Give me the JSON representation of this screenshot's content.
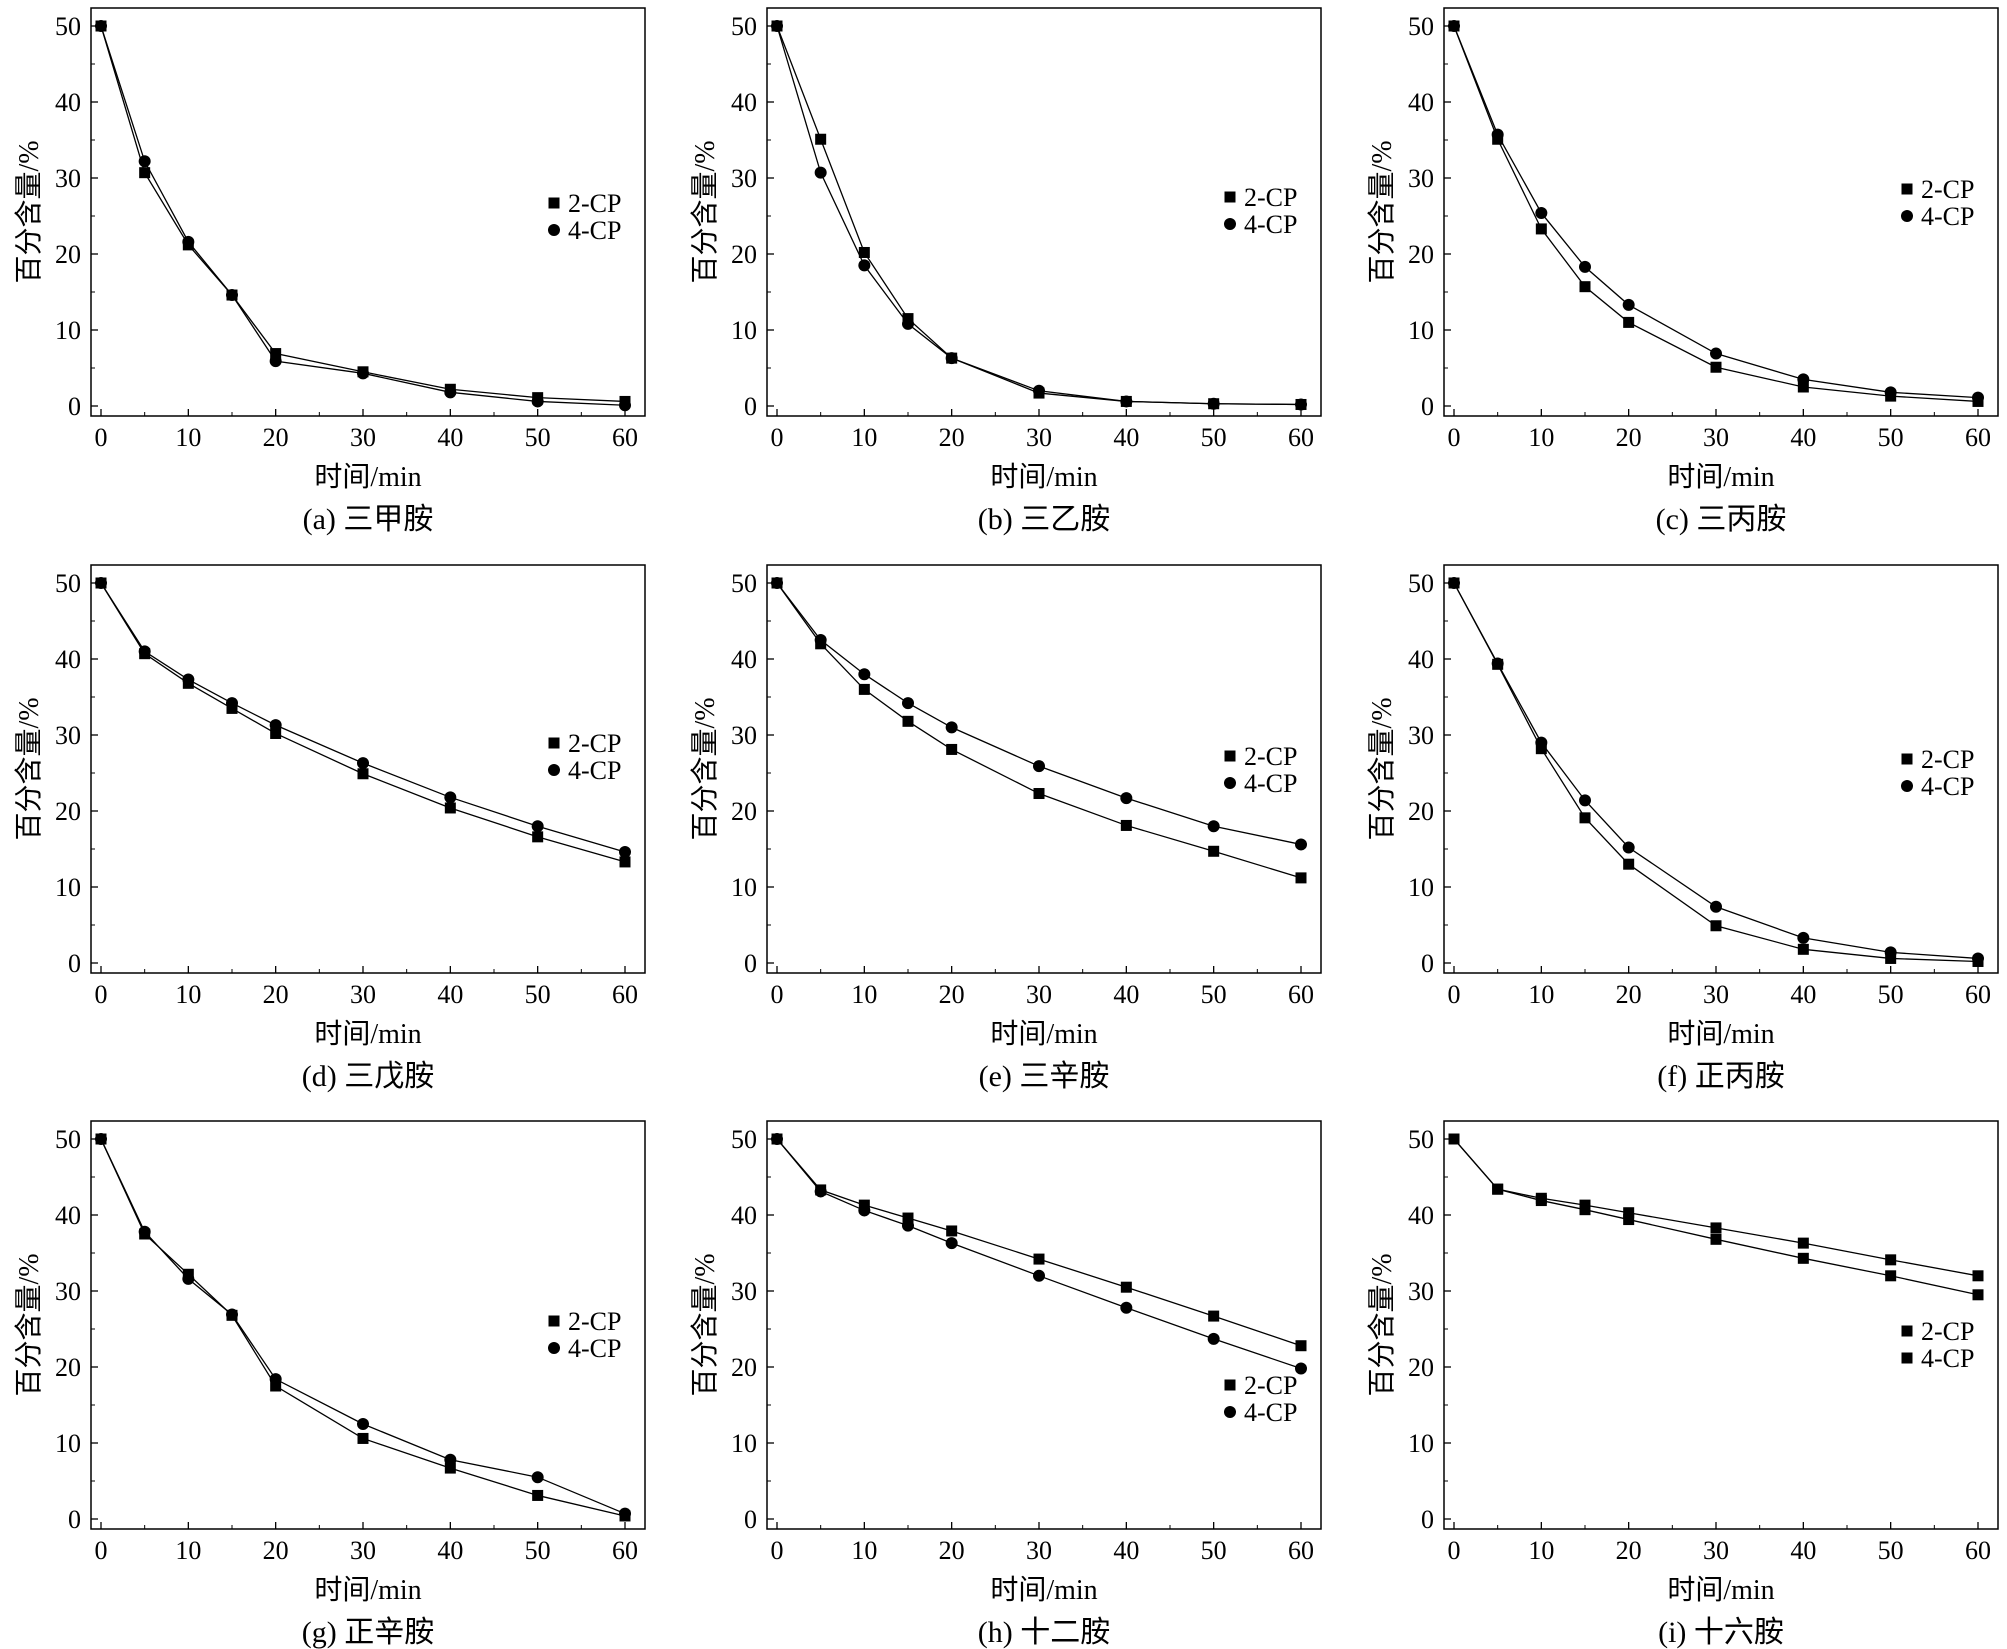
{
  "colors": {
    "line": "#000000",
    "marker": "#000000",
    "background": "#ffffff"
  },
  "chart_data": [
    {
      "type": "line",
      "caption": "(a) 三甲胺",
      "xlabel": "时间/min",
      "ylabel": "百分含量/%",
      "xlim": [
        0,
        60
      ],
      "ylim": [
        0,
        50
      ],
      "legend_position": "right",
      "x": [
        0,
        5,
        10,
        15,
        20,
        30,
        40,
        50,
        60
      ],
      "series": [
        {
          "name": "2-CP",
          "marker": "square",
          "values": [
            50,
            30.7,
            21.2,
            14.6,
            6.9,
            4.5,
            2.2,
            1.1,
            0.6
          ]
        },
        {
          "name": "4-CP",
          "marker": "circle",
          "values": [
            50,
            32.2,
            21.6,
            14.6,
            5.9,
            4.3,
            1.8,
            0.6,
            0.1
          ]
        }
      ]
    },
    {
      "type": "line",
      "caption": "(b) 三乙胺",
      "xlabel": "时间/min",
      "ylabel": "百分含量/%",
      "xlim": [
        0,
        60
      ],
      "ylim": [
        0,
        50
      ],
      "legend_position": "right",
      "x": [
        0,
        5,
        10,
        15,
        20,
        30,
        40,
        50,
        60
      ],
      "series": [
        {
          "name": "2-CP",
          "marker": "square",
          "values": [
            50,
            35.1,
            20.2,
            11.5,
            6.3,
            1.7,
            0.6,
            0.3,
            0.2
          ]
        },
        {
          "name": "4-CP",
          "marker": "circle",
          "values": [
            50,
            30.7,
            18.5,
            10.8,
            6.3,
            2.0,
            0.6,
            0.3,
            0.2
          ]
        }
      ]
    },
    {
      "type": "line",
      "caption": "(c) 三丙胺",
      "xlabel": "时间/min",
      "ylabel": "百分含量/%",
      "xlim": [
        0,
        60
      ],
      "ylim": [
        0,
        50
      ],
      "legend_position": "right",
      "x": [
        0,
        5,
        10,
        15,
        20,
        30,
        40,
        50,
        60
      ],
      "series": [
        {
          "name": "2-CP",
          "marker": "square",
          "values": [
            50,
            35.1,
            23.3,
            15.7,
            11.0,
            5.1,
            2.5,
            1.3,
            0.6
          ]
        },
        {
          "name": "4-CP",
          "marker": "circle",
          "values": [
            50,
            35.7,
            25.4,
            18.3,
            13.3,
            6.9,
            3.5,
            1.8,
            1.1
          ]
        }
      ]
    },
    {
      "type": "line",
      "caption": "(d) 三戊胺",
      "xlabel": "时间/min",
      "ylabel": "百分含量/%",
      "xlim": [
        0,
        60
      ],
      "ylim": [
        0,
        50
      ],
      "legend_position": "right",
      "x": [
        0,
        5,
        10,
        15,
        20,
        30,
        40,
        50,
        60
      ],
      "series": [
        {
          "name": "2-CP",
          "marker": "square",
          "values": [
            50,
            40.7,
            36.8,
            33.5,
            30.2,
            24.9,
            20.4,
            16.6,
            13.3
          ]
        },
        {
          "name": "4-CP",
          "marker": "circle",
          "values": [
            50,
            41.0,
            37.3,
            34.2,
            31.3,
            26.3,
            21.8,
            18.0,
            14.6
          ]
        }
      ]
    },
    {
      "type": "line",
      "caption": "(e) 三辛胺",
      "xlabel": "时间/min",
      "ylabel": "百分含量/%",
      "xlim": [
        0,
        60
      ],
      "ylim": [
        0,
        50
      ],
      "legend_position": "right",
      "x": [
        0,
        5,
        10,
        15,
        20,
        30,
        40,
        50,
        60
      ],
      "series": [
        {
          "name": "2-CP",
          "marker": "square",
          "values": [
            50,
            42.0,
            36.0,
            31.8,
            28.1,
            22.3,
            18.1,
            14.7,
            11.2
          ]
        },
        {
          "name": "4-CP",
          "marker": "circle",
          "values": [
            50,
            42.5,
            38.0,
            34.2,
            31.0,
            25.9,
            21.7,
            18.0,
            15.6
          ]
        }
      ]
    },
    {
      "type": "line",
      "caption": "(f) 正丙胺",
      "xlabel": "时间/min",
      "ylabel": "百分含量/%",
      "xlim": [
        0,
        60
      ],
      "ylim": [
        0,
        50
      ],
      "legend_position": "right",
      "x": [
        0,
        5,
        10,
        15,
        20,
        30,
        40,
        50,
        60
      ],
      "series": [
        {
          "name": "2-CP",
          "marker": "square",
          "values": [
            50,
            39.3,
            28.2,
            19.1,
            13.0,
            4.9,
            1.8,
            0.6,
            0.2
          ]
        },
        {
          "name": "4-CP",
          "marker": "circle",
          "values": [
            50,
            39.4,
            29.0,
            21.4,
            15.2,
            7.4,
            3.3,
            1.4,
            0.6
          ]
        }
      ]
    },
    {
      "type": "line",
      "caption": "(g) 正辛胺",
      "xlabel": "时间/min",
      "ylabel": "百分含量/%",
      "xlim": [
        0,
        60
      ],
      "ylim": [
        0,
        50
      ],
      "legend_position": "right",
      "x": [
        0,
        5,
        10,
        15,
        20,
        30,
        40,
        50,
        60
      ],
      "series": [
        {
          "name": "2-CP",
          "marker": "square",
          "values": [
            50,
            37.5,
            32.2,
            26.8,
            17.5,
            10.6,
            6.7,
            3.1,
            0.4
          ]
        },
        {
          "name": "4-CP",
          "marker": "circle",
          "values": [
            50,
            37.8,
            31.6,
            26.9,
            18.4,
            12.5,
            7.8,
            5.5,
            0.7
          ]
        }
      ]
    },
    {
      "type": "line",
      "caption": "(h) 十二胺",
      "xlabel": "时间/min",
      "ylabel": "百分含量/%",
      "xlim": [
        0,
        60
      ],
      "ylim": [
        0,
        50
      ],
      "legend_position": "right",
      "x": [
        0,
        5,
        10,
        15,
        20,
        30,
        40,
        50,
        60
      ],
      "series": [
        {
          "name": "2-CP",
          "marker": "square",
          "values": [
            50,
            43.3,
            41.3,
            39.6,
            37.9,
            34.2,
            30.5,
            26.7,
            22.8
          ]
        },
        {
          "name": "4-CP",
          "marker": "circle",
          "values": [
            50,
            43.1,
            40.6,
            38.6,
            36.3,
            32.0,
            27.8,
            23.7,
            19.8
          ]
        }
      ]
    },
    {
      "type": "line",
      "caption": "(i) 十六胺",
      "xlabel": "时间/min",
      "ylabel": "百分含量/%",
      "xlim": [
        0,
        60
      ],
      "ylim": [
        0,
        50
      ],
      "legend_position": "right",
      "x": [
        0,
        5,
        10,
        15,
        20,
        30,
        40,
        50,
        60
      ],
      "series": [
        {
          "name": "2-CP",
          "marker": "square",
          "values": [
            50,
            43.4,
            42.2,
            41.3,
            40.3,
            38.3,
            36.3,
            34.1,
            32.0
          ]
        },
        {
          "name": "4-CP",
          "marker": "square",
          "values": [
            50,
            43.4,
            41.9,
            40.7,
            39.4,
            36.8,
            34.3,
            32.0,
            29.5
          ]
        }
      ]
    }
  ]
}
